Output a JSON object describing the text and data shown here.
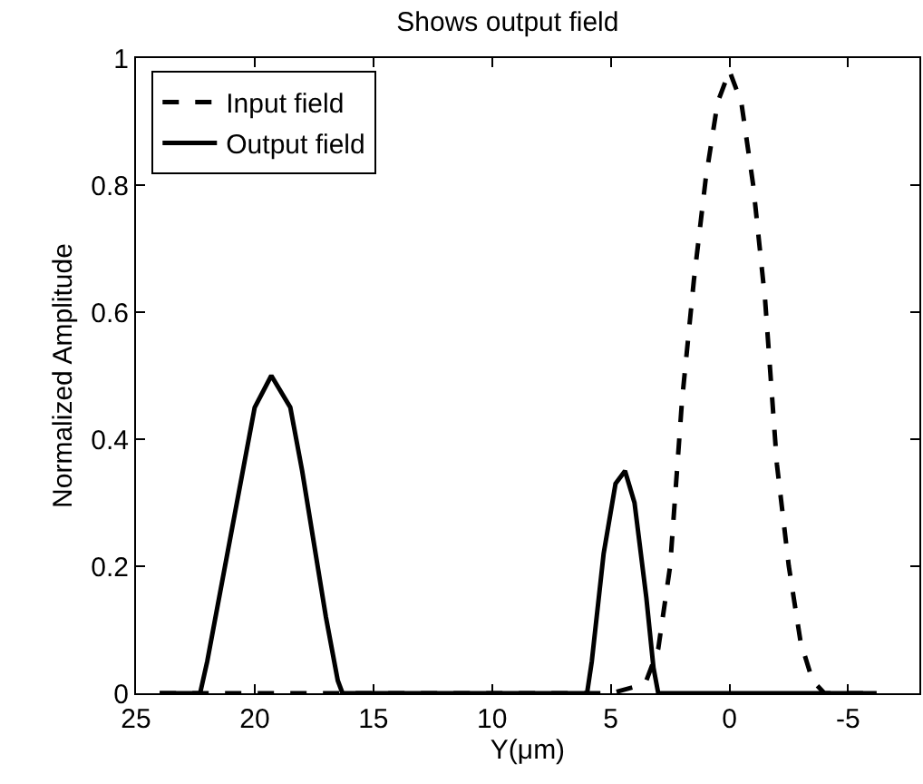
{
  "chart_data": {
    "type": "line",
    "title": "Shows output field",
    "xlabel": "Y(μm)",
    "ylabel": "Normalized Amplitude",
    "xlim": [
      25,
      -8
    ],
    "xticks": [
      25,
      20,
      15,
      10,
      5,
      0,
      -5
    ],
    "ylim": [
      0,
      1
    ],
    "yticks": [
      0,
      0.2,
      0.4,
      0.6,
      0.8,
      1
    ],
    "grid": false,
    "legend": "top left",
    "marker": "none",
    "series": [
      {
        "name": "Input field",
        "color": "#000000",
        "line_style": "dashed",
        "x": [
          24,
          20,
          15,
          10,
          6,
          5,
          4,
          3.5,
          3,
          2.5,
          2,
          1.5,
          1,
          0.5,
          0,
          -0.5,
          -1,
          -1.5,
          -2,
          -2.5,
          -3,
          -3.5,
          -4,
          -5,
          -6.2
        ],
        "values": [
          0,
          0,
          0,
          0,
          0,
          0,
          0.01,
          0.02,
          0.07,
          0.2,
          0.46,
          0.65,
          0.81,
          0.93,
          0.98,
          0.93,
          0.8,
          0.62,
          0.36,
          0.2,
          0.08,
          0.02,
          0,
          0,
          0
        ]
      },
      {
        "name": "Output field",
        "color": "#000000",
        "line_style": "solid",
        "x": [
          24,
          22.3,
          22,
          21,
          20,
          19.3,
          18.5,
          18,
          17,
          16.5,
          16.3,
          6,
          5.8,
          5.3,
          4.8,
          4.4,
          4,
          3.5,
          3.2,
          3,
          -6.2
        ],
        "values": [
          0,
          0,
          0.05,
          0.25,
          0.45,
          0.5,
          0.45,
          0.35,
          0.12,
          0.02,
          0,
          0,
          0.05,
          0.22,
          0.33,
          0.35,
          0.3,
          0.15,
          0.04,
          0,
          0
        ]
      }
    ]
  }
}
